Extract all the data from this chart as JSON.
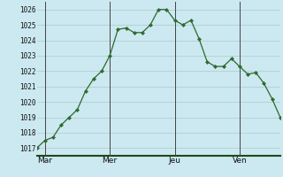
{
  "x_values": [
    0,
    1,
    2,
    3,
    4,
    5,
    6,
    7,
    8,
    9,
    10,
    11,
    12,
    13,
    14,
    15,
    16,
    17,
    18,
    19,
    20,
    21,
    22,
    23,
    24,
    25,
    26,
    27,
    28,
    29,
    30
  ],
  "y_values": [
    1017.0,
    1017.5,
    1017.7,
    1018.5,
    1019.0,
    1019.5,
    1020.7,
    1021.5,
    1022.0,
    1023.0,
    1024.7,
    1024.8,
    1024.5,
    1024.5,
    1025.0,
    1026.0,
    1026.0,
    1025.3,
    1025.0,
    1025.3,
    1024.1,
    1022.6,
    1022.3,
    1022.3,
    1022.8,
    1022.3,
    1021.8,
    1021.9,
    1021.2,
    1020.2,
    1019.0
  ],
  "xtick_positions": [
    1,
    9,
    17,
    25
  ],
  "xtick_labels": [
    "Mar",
    "Mer",
    "Jeu",
    "Ven"
  ],
  "vlines": [
    1,
    9,
    17,
    25
  ],
  "ylim": [
    1016.5,
    1026.5
  ],
  "ytick_start": 1017,
  "ytick_end": 1026,
  "ytick_step": 1,
  "line_color": "#2d6a2d",
  "marker_color": "#2d6a2d",
  "bg_color": "#cce8f0",
  "grid_color": "#aacccc",
  "bottom_spine_color": "#1a4a1a",
  "tick_label_color": "#111111",
  "vline_color": "#444444"
}
